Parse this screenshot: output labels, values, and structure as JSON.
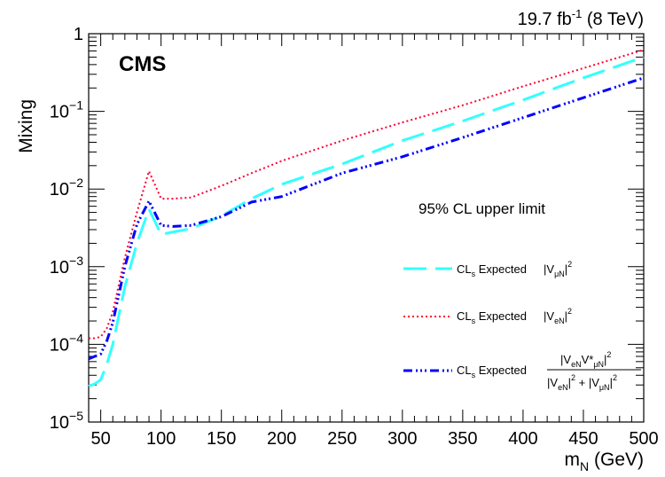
{
  "chart_data": {
    "type": "line",
    "title": "",
    "xlabel": "m",
    "xlabel_sub": "N",
    "xlabel_unit": " (GeV)",
    "ylabel": "Mixing",
    "xlim": [
      40,
      500
    ],
    "ylim": [
      1e-05,
      1
    ],
    "yscale": "log",
    "x_ticks": [
      50,
      100,
      150,
      200,
      250,
      300,
      350,
      400,
      450,
      500
    ],
    "y_tick_base": "10",
    "y_tick_top": "1",
    "y_tick_exponents": [
      "−1",
      "−2",
      "−3",
      "−4",
      "−5"
    ],
    "lumi_value": "19.7 fb",
    "lumi_exp": "-1",
    "lumi_energy": " (8 TeV)",
    "experiment": "CMS",
    "cl_label": "95% CL upper limit",
    "legend_prefix": "CL",
    "legend_prefix_sub": "s",
    "legend_expected": " Expected",
    "legend_position": "right",
    "legend_math": {
      "mu_V": "V",
      "mu_sub": "μN",
      "e_V": "V",
      "e_sub": "eN",
      "sq": "2",
      "num_V1": "V",
      "num_sub1": "eN",
      "num_V2": "V*",
      "num_sub2": "μN",
      "plus": " + "
    },
    "series": [
      {
        "key": "mu",
        "color": "#33ffff",
        "dash": "26,10",
        "x": [
          40,
          45,
          50,
          55,
          60,
          70,
          80,
          90,
          100,
          110,
          125,
          150,
          175,
          200,
          250,
          300,
          350,
          400,
          450,
          500
        ],
        "y": [
          2.9e-05,
          3.1e-05,
          3.5e-05,
          5.5e-05,
          0.0001,
          0.00055,
          0.002,
          0.0055,
          0.0026,
          0.0028,
          0.0031,
          0.0045,
          0.0075,
          0.0115,
          0.021,
          0.042,
          0.075,
          0.14,
          0.27,
          0.5
        ]
      },
      {
        "key": "e",
        "color": "#ff0033",
        "dash": "2,3",
        "x": [
          40,
          45,
          50,
          55,
          60,
          70,
          80,
          90,
          100,
          110,
          125,
          150,
          175,
          200,
          250,
          300,
          350,
          400,
          450,
          500
        ],
        "y": [
          0.00012,
          0.00012,
          0.000125,
          0.00016,
          0.00026,
          0.0013,
          0.005,
          0.017,
          0.0075,
          0.0075,
          0.0078,
          0.011,
          0.016,
          0.023,
          0.042,
          0.072,
          0.12,
          0.21,
          0.36,
          0.62
        ]
      },
      {
        "key": "emu",
        "color": "#0000ff",
        "dash": "10,4,2,3,2,3,2,4",
        "x": [
          40,
          45,
          50,
          55,
          60,
          70,
          80,
          90,
          100,
          110,
          125,
          150,
          175,
          200,
          250,
          300,
          350,
          400,
          450,
          500
        ],
        "y": [
          6.5e-05,
          7e-05,
          7.5e-05,
          0.00011,
          0.00019,
          0.001,
          0.0035,
          0.007,
          0.0034,
          0.0033,
          0.0034,
          0.0044,
          0.0068,
          0.008,
          0.016,
          0.026,
          0.046,
          0.083,
          0.15,
          0.27
        ]
      }
    ]
  }
}
